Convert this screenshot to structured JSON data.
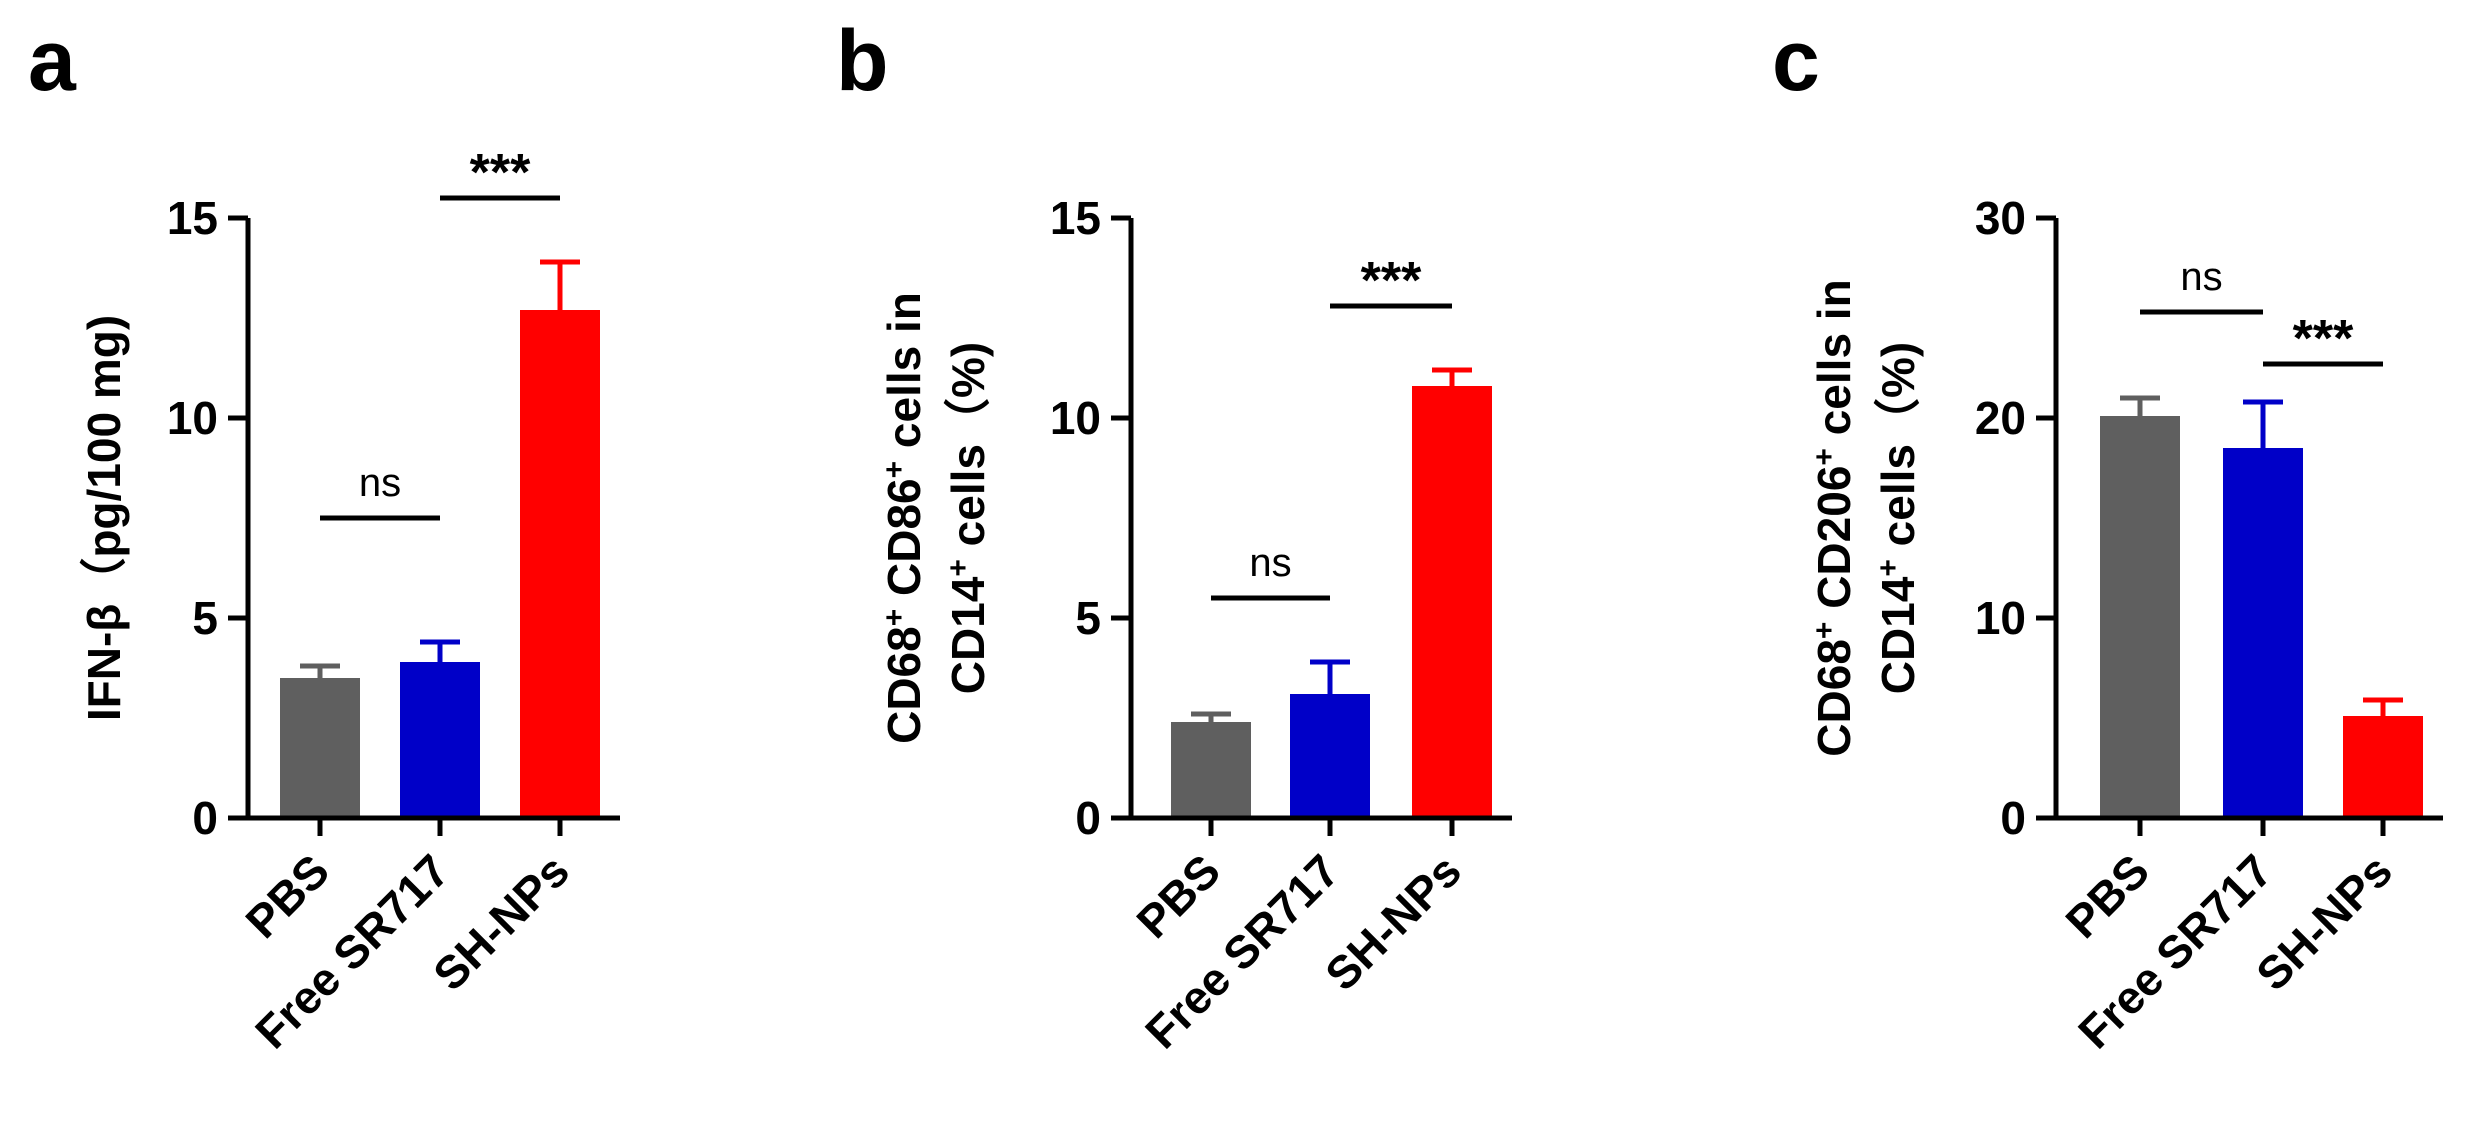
{
  "chart_data": [
    {
      "panel": "a",
      "type": "bar",
      "categories": [
        "PBS",
        "Free SR717",
        "SH-NPs"
      ],
      "values": [
        3.5,
        3.9,
        12.7
      ],
      "errors": [
        0.3,
        0.5,
        1.2
      ],
      "colors": [
        "#5f5f5f",
        "#0000c8",
        "#ff0000"
      ],
      "ylabel_parts": [
        {
          "text": "IFN-β（pg/100 mg)",
          "sup": false
        }
      ],
      "ylabel_lines": 1,
      "ylim": [
        0,
        15
      ],
      "yticks": [
        "0",
        "5",
        "10",
        "15"
      ],
      "ytick_values": [
        0,
        5,
        10,
        15
      ],
      "significance": [
        {
          "from": 0,
          "to": 1,
          "label": "ns",
          "y": 7.5
        },
        {
          "from": 1,
          "to": 2,
          "label": "***",
          "y": 15.5
        }
      ]
    },
    {
      "panel": "b",
      "type": "bar",
      "categories": [
        "PBS",
        "Free SR717",
        "SH-NPs"
      ],
      "values": [
        2.4,
        3.1,
        10.8
      ],
      "errors": [
        0.2,
        0.8,
        0.4
      ],
      "colors": [
        "#5f5f5f",
        "#0000c8",
        "#ff0000"
      ],
      "ylabel_line1": [
        {
          "text": "CD68",
          "sup": false
        },
        {
          "text": "+",
          "sup": true
        },
        {
          "text": " CD86",
          "sup": false
        },
        {
          "text": "+",
          "sup": true
        },
        {
          "text": " cells in",
          "sup": false
        }
      ],
      "ylabel_line2": [
        {
          "text": "CD14",
          "sup": false
        },
        {
          "text": "+",
          "sup": true
        },
        {
          "text": " cells（%)",
          "sup": false
        }
      ],
      "ylim": [
        0,
        15
      ],
      "yticks": [
        "0",
        "5",
        "10",
        "15"
      ],
      "ytick_values": [
        0,
        5,
        10,
        15
      ],
      "significance": [
        {
          "from": 0,
          "to": 1,
          "label": "ns",
          "y": 5.5
        },
        {
          "from": 1,
          "to": 2,
          "label": "***",
          "y": 12.8
        }
      ]
    },
    {
      "panel": "c",
      "type": "bar",
      "categories": [
        "PBS",
        "Free SR717",
        "SH-NPs"
      ],
      "values": [
        20.1,
        18.5,
        5.1
      ],
      "errors": [
        0.9,
        2.3,
        0.8
      ],
      "colors": [
        "#5f5f5f",
        "#0000c8",
        "#ff0000"
      ],
      "ylabel_line1": [
        {
          "text": "CD68",
          "sup": false
        },
        {
          "text": "+",
          "sup": true
        },
        {
          "text": " CD206",
          "sup": false
        },
        {
          "text": "+",
          "sup": true
        },
        {
          "text": " cells in",
          "sup": false
        }
      ],
      "ylabel_line2": [
        {
          "text": "CD14",
          "sup": false
        },
        {
          "text": "+",
          "sup": true
        },
        {
          "text": " cells（%)",
          "sup": false
        }
      ],
      "ylim": [
        0,
        30
      ],
      "yticks": [
        "0",
        "10",
        "20",
        "30"
      ],
      "ytick_values": [
        0,
        10,
        20,
        30
      ],
      "significance": [
        {
          "from": 0,
          "to": 1,
          "label": "ns",
          "y": 25.3
        },
        {
          "from": 1,
          "to": 2,
          "label": "***",
          "y": 22.7
        }
      ]
    }
  ]
}
